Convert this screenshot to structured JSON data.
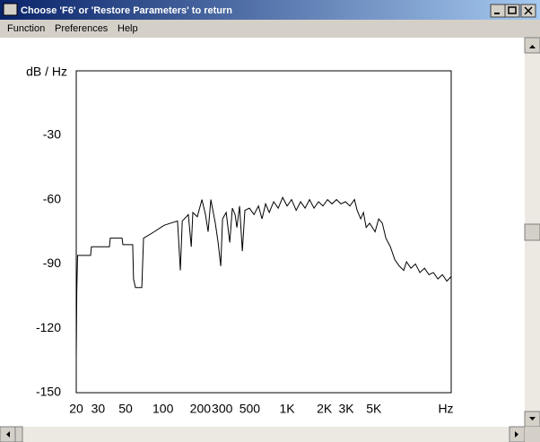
{
  "window": {
    "title": "Choose 'F6' or 'Restore Parameters' to return"
  },
  "menu": [
    "Function",
    "Preferences",
    "Help"
  ],
  "chart_data": {
    "type": "line",
    "ylabel": "dB / Hz",
    "xlabel": "Hz",
    "log_x": true,
    "color": "#000000",
    "xlim": [
      20,
      21000
    ],
    "ylim": [
      -150,
      0
    ],
    "yticks": [
      -30,
      -60,
      -90,
      -120,
      -150
    ],
    "xticks": [
      20,
      30,
      50,
      100,
      200,
      300,
      500,
      {
        "value": 1000,
        "label": "1K"
      },
      {
        "value": 2000,
        "label": "2K"
      },
      {
        "value": 3000,
        "label": "3K"
      },
      {
        "value": 5000,
        "label": "5K"
      }
    ],
    "x": [
      20,
      20.2,
      20.5,
      26.1,
      26.5,
      37,
      37.6,
      46.8,
      47.5,
      57,
      57.9,
      60,
      67.5,
      69.7,
      85,
      102,
      115,
      131,
      138,
      143,
      160,
      169,
      174,
      189,
      206,
      220,
      231,
      243,
      264,
      278,
      292,
      302,
      323,
      345,
      362,
      381,
      394,
      414,
      436,
      457,
      497,
      541,
      588,
      628,
      671,
      718,
      780,
      848,
      921,
      1000,
      1087,
      1183,
      1285,
      1396,
      1517,
      1648,
      1791,
      1945,
      2117,
      2300,
      2500,
      2716,
      2951,
      3206,
      3490,
      3667,
      3920,
      4122,
      4336,
      4624,
      5116,
      5471,
      5849,
      6253,
      6793,
      7380,
      8018,
      8710,
      9160,
      9950,
      10810,
      11750,
      12790,
      13900,
      15100,
      16400,
      17830,
      19370,
      20900
    ],
    "values": [
      -134,
      -103,
      -86,
      -86,
      -82,
      -82,
      -78,
      -78,
      -81,
      -81,
      -97,
      -101,
      -101,
      -78,
      -75,
      -72,
      -71,
      -70,
      -93,
      -70,
      -67,
      -82,
      -66,
      -68,
      -60,
      -67,
      -75,
      -60,
      -71,
      -80,
      -91,
      -69,
      -66,
      -80,
      -64,
      -67,
      -73,
      -63,
      -84,
      -65,
      -64,
      -67,
      -63,
      -69,
      -62,
      -66,
      -61,
      -64,
      -59,
      -63,
      -60,
      -65,
      -61,
      -64,
      -60,
      -64,
      -61,
      -63,
      -60,
      -62,
      -60,
      -62,
      -61,
      -63,
      -60,
      -65,
      -69,
      -66,
      -73,
      -71,
      -75,
      -69,
      -71,
      -78,
      -82,
      -88,
      -91,
      -93,
      -89,
      -92,
      -90,
      -94,
      -92,
      -95,
      -94,
      -97,
      -95,
      -98,
      -96
    ]
  }
}
